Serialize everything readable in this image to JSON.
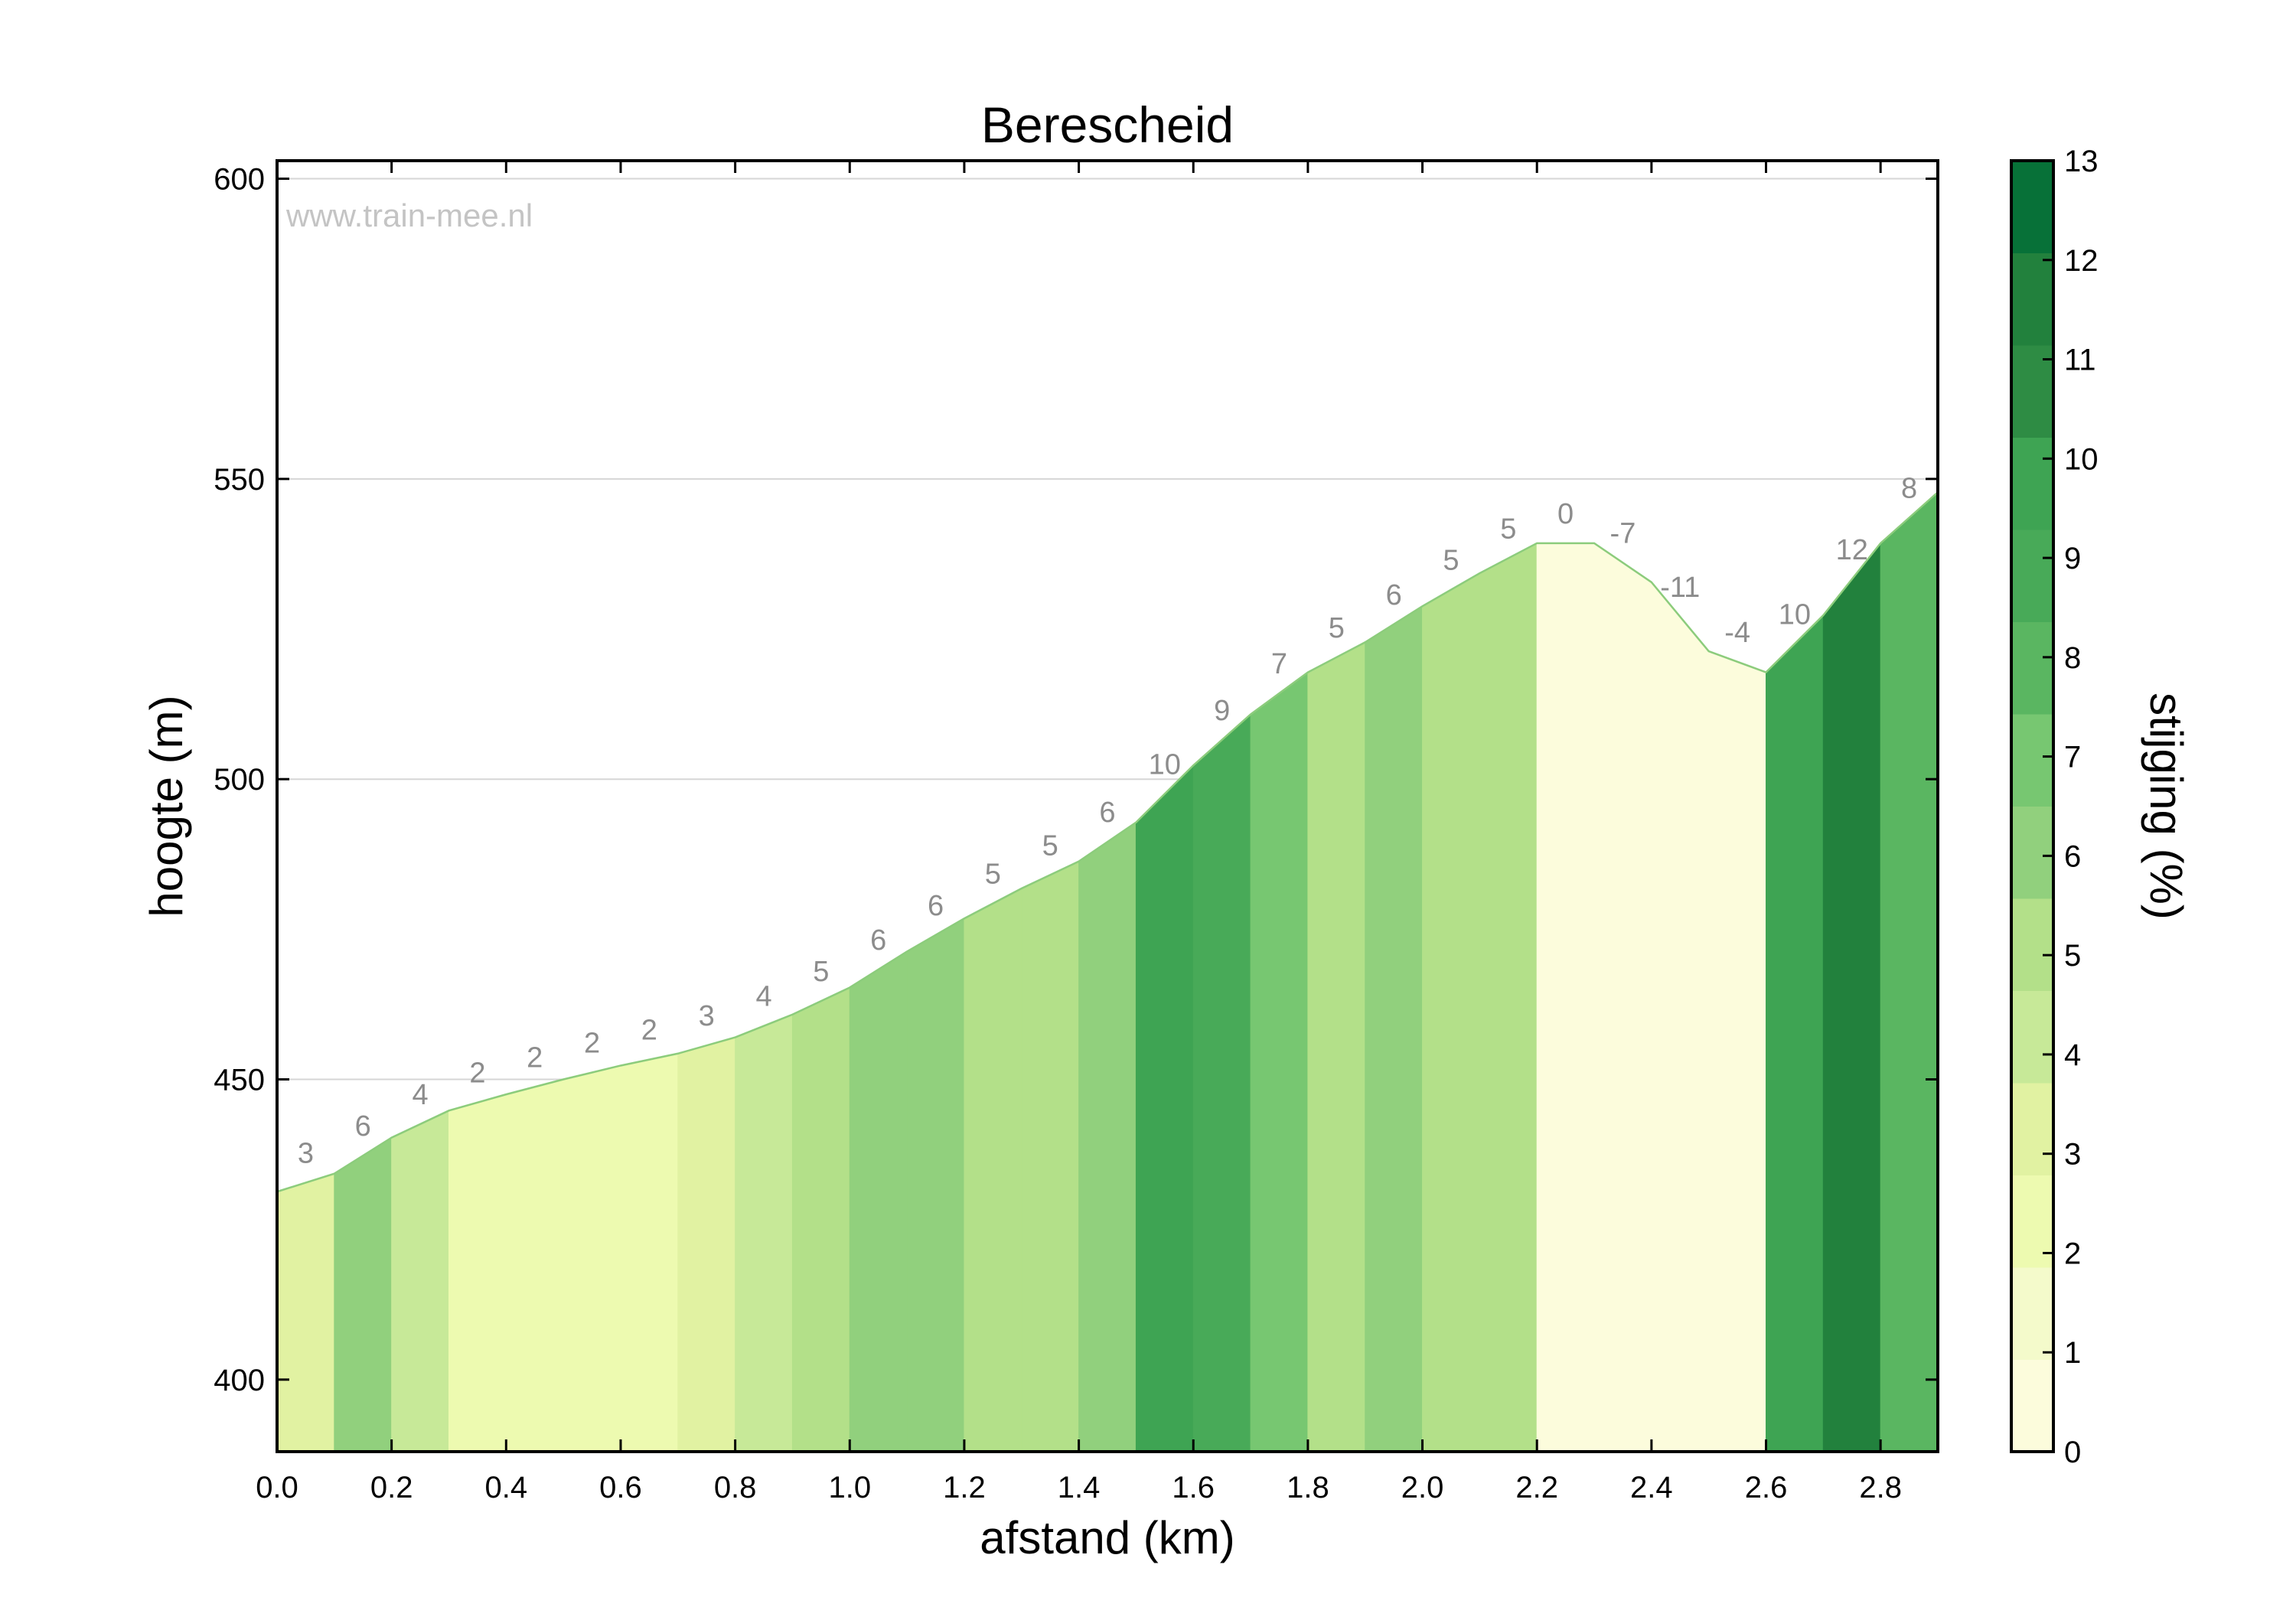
{
  "chart_data": {
    "type": "area",
    "title": "Berescheid",
    "watermark": "www.train-mee.nl",
    "xlabel": "afstand (km)",
    "ylabel": "hoogte (m)",
    "xlim": [
      0.0,
      2.9
    ],
    "ylim": [
      388,
      603
    ],
    "x_ticks": [
      "0.0",
      "0.2",
      "0.4",
      "0.6",
      "0.8",
      "1.0",
      "1.2",
      "1.4",
      "1.6",
      "1.8",
      "2.0",
      "2.2",
      "2.4",
      "2.6",
      "2.8"
    ],
    "y_ticks": [
      "400",
      "450",
      "500",
      "550",
      "600"
    ],
    "grid": "horizontal",
    "profile": {
      "x": [
        0.0,
        0.1,
        0.2,
        0.3,
        0.4,
        0.5,
        0.6,
        0.7,
        0.8,
        0.9,
        1.0,
        1.1,
        1.2,
        1.3,
        1.4,
        1.5,
        1.6,
        1.7,
        1.8,
        1.9,
        2.0,
        2.1,
        2.2,
        2.3,
        2.4,
        2.5,
        2.6,
        2.7,
        2.8,
        2.9
      ],
      "y": [
        431.3,
        434.3,
        440.3,
        444.8,
        447.5,
        450.0,
        452.3,
        454.3,
        457.0,
        460.8,
        465.3,
        471.3,
        476.8,
        481.8,
        486.3,
        492.8,
        502.3,
        510.8,
        517.8,
        522.8,
        528.8,
        534.3,
        539.3,
        539.3,
        532.8,
        521.3,
        517.8,
        527.3,
        539.3,
        547.8
      ]
    },
    "segments": {
      "grades": [
        3,
        6,
        4,
        2,
        2,
        2,
        2,
        3,
        4,
        5,
        6,
        6,
        5,
        5,
        6,
        10,
        9,
        7,
        5,
        6,
        5,
        5,
        0,
        -7,
        -11,
        -4,
        10,
        12,
        8
      ],
      "labels": [
        "3",
        "6",
        "4",
        "2",
        "2",
        "2",
        "2",
        "3",
        "4",
        "5",
        "6",
        "6",
        "5",
        "5",
        "6",
        "10",
        "9",
        "7",
        "5",
        "6",
        "5",
        "5",
        "0",
        "-7",
        "-11",
        "-4",
        "10",
        "12",
        "8"
      ]
    },
    "colorbar": {
      "label": "stijging (%)",
      "ticks": [
        "0",
        "1",
        "2",
        "3",
        "4",
        "5",
        "6",
        "7",
        "8",
        "9",
        "10",
        "11",
        "12",
        "13"
      ],
      "range": [
        0,
        13
      ],
      "colors": [
        "#fcfcdc",
        "#f4facb",
        "#edfab0",
        "#e1f2a2",
        "#c7e998",
        "#b3e089",
        "#91d07d",
        "#77c771",
        "#5ab661",
        "#48aa58",
        "#3ea453",
        "#2e8c44",
        "#22813d",
        "#077138"
      ]
    }
  }
}
